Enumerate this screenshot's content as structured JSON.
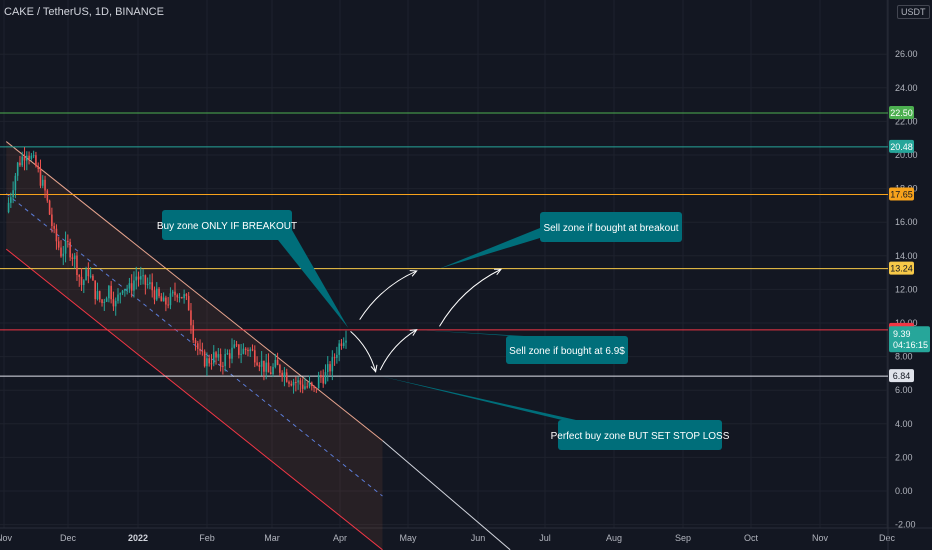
{
  "header": {
    "symbol_title": "CAKE / TetherUS, 1D, BINANCE",
    "currency": "USDT"
  },
  "colors": {
    "background": "#131722",
    "grid": "#1e222d",
    "text": "#b2b5be",
    "candle_up": "#26a69a",
    "candle_down": "#ef5350",
    "callout_bg": "#006e7a",
    "callout_text": "#ffffff"
  },
  "chart_data": {
    "type": "candlestick",
    "y_axis": {
      "ticks": [
        "26.00",
        "24.00",
        "22.00",
        "20.00",
        "18.00",
        "16.00",
        "14.00",
        "12.00",
        "10.00",
        "8.00",
        "6.00",
        "4.00",
        "2.00",
        "0.00",
        "-2.00"
      ],
      "range": [
        -2.0,
        28.5
      ]
    },
    "x_axis": {
      "labels": [
        "Nov",
        "Dec",
        "2022",
        "Feb",
        "Mar",
        "Apr",
        "May",
        "Jun",
        "Jul",
        "Aug",
        "Sep",
        "Oct",
        "Nov",
        "Dec"
      ]
    },
    "price_series": [
      {
        "date": "2021-11-01",
        "price": 16.6
      },
      {
        "date": "2021-11-06",
        "price": 19.4
      },
      {
        "date": "2021-11-10",
        "price": 20.3
      },
      {
        "date": "2021-11-14",
        "price": 19.3
      },
      {
        "date": "2021-11-18",
        "price": 17.8
      },
      {
        "date": "2021-11-22",
        "price": 15.2
      },
      {
        "date": "2021-11-25",
        "price": 14.2
      },
      {
        "date": "2021-11-28",
        "price": 14.6
      },
      {
        "date": "2021-12-01",
        "price": 13.8
      },
      {
        "date": "2021-12-04",
        "price": 12.3
      },
      {
        "date": "2021-12-07",
        "price": 13.1
      },
      {
        "date": "2021-12-10",
        "price": 11.8
      },
      {
        "date": "2021-12-13",
        "price": 11.2
      },
      {
        "date": "2021-12-16",
        "price": 12.1
      },
      {
        "date": "2021-12-19",
        "price": 11.1
      },
      {
        "date": "2021-12-22",
        "price": 12.3
      },
      {
        "date": "2021-12-25",
        "price": 12.0
      },
      {
        "date": "2021-12-28",
        "price": 12.8
      },
      {
        "date": "2021-12-31",
        "price": 12.4
      },
      {
        "date": "2022-01-03",
        "price": 12.2
      },
      {
        "date": "2022-01-06",
        "price": 11.6
      },
      {
        "date": "2022-01-09",
        "price": 11.1
      },
      {
        "date": "2022-01-12",
        "price": 11.4
      },
      {
        "date": "2022-01-15",
        "price": 11.9
      },
      {
        "date": "2022-01-18",
        "price": 11.5
      },
      {
        "date": "2022-01-20",
        "price": 11.0
      },
      {
        "date": "2022-01-22",
        "price": 9.4
      },
      {
        "date": "2022-01-25",
        "price": 8.0
      },
      {
        "date": "2022-01-28",
        "price": 7.7
      },
      {
        "date": "2022-01-31",
        "price": 8.0
      },
      {
        "date": "2022-02-03",
        "price": 7.6
      },
      {
        "date": "2022-02-06",
        "price": 8.1
      },
      {
        "date": "2022-02-09",
        "price": 8.4
      },
      {
        "date": "2022-02-12",
        "price": 8.3
      },
      {
        "date": "2022-02-15",
        "price": 8.5
      },
      {
        "date": "2022-02-18",
        "price": 8.1
      },
      {
        "date": "2022-02-21",
        "price": 7.6
      },
      {
        "date": "2022-02-24",
        "price": 7.0
      },
      {
        "date": "2022-02-27",
        "price": 7.4
      },
      {
        "date": "2022-03-02",
        "price": 7.2
      },
      {
        "date": "2022-03-05",
        "price": 6.7
      },
      {
        "date": "2022-03-08",
        "price": 6.5
      },
      {
        "date": "2022-03-11",
        "price": 6.3
      },
      {
        "date": "2022-03-14",
        "price": 6.2
      },
      {
        "date": "2022-03-16",
        "price": 5.9
      },
      {
        "date": "2022-03-18",
        "price": 6.7
      },
      {
        "date": "2022-03-21",
        "price": 6.9
      },
      {
        "date": "2022-03-24",
        "price": 7.6
      },
      {
        "date": "2022-03-26",
        "price": 8.4
      },
      {
        "date": "2022-03-28",
        "price": 9.0
      },
      {
        "date": "2022-03-30",
        "price": 9.4
      }
    ],
    "horizontal_levels": [
      {
        "label": "22.50",
        "value": 22.5,
        "color": "#4caf50"
      },
      {
        "label": "20.48",
        "value": 20.48,
        "color": "#26a69a"
      },
      {
        "label": "17.65",
        "value": 17.65,
        "color": "#f7a21b"
      },
      {
        "label": "13.24",
        "value": 13.24,
        "color": "#f7c948"
      },
      {
        "label": "9.59",
        "value": 9.59,
        "color": "#f23645"
      },
      {
        "label": "6.84",
        "value": 6.84,
        "color": "#e0e3eb"
      }
    ],
    "current_price": {
      "label": "9.39",
      "countdown": "04:16:15",
      "value": 9.39,
      "color": "#26a69a"
    },
    "channel": {
      "upper": [
        {
          "date": "2021-11-01",
          "price": 20.8
        },
        {
          "date": "2022-04-15",
          "price": 3.0
        }
      ],
      "mid": [
        {
          "date": "2021-11-01",
          "price": 17.7
        },
        {
          "date": "2022-04-15",
          "price": -0.3
        }
      ],
      "lower": [
        {
          "date": "2021-11-01",
          "price": 14.4
        },
        {
          "date": "2022-04-15",
          "price": -3.5
        }
      ],
      "extension": [
        {
          "date": "2022-04-15",
          "price": 3.0
        },
        {
          "date": "2022-06-10",
          "price": -3.5
        }
      ]
    },
    "projection_arrows": [
      {
        "from": {
          "date": "2022-04-05",
          "price": 10.2
        },
        "to": {
          "date": "2022-04-30",
          "price": 13.1
        }
      },
      {
        "from": {
          "date": "2022-04-01",
          "price": 9.5
        },
        "to": {
          "date": "2022-04-12",
          "price": 7.1
        }
      },
      {
        "from": {
          "date": "2022-04-14",
          "price": 7.2
        },
        "to": {
          "date": "2022-04-30",
          "price": 9.6
        }
      },
      {
        "from": {
          "date": "2022-05-10",
          "price": 9.8
        },
        "to": {
          "date": "2022-06-06",
          "price": 13.2
        }
      }
    ],
    "annotations": [
      {
        "id": "buy-breakout",
        "text": "Buy zone ONLY IF BREAKOUT",
        "anchor": "box-left",
        "tip": {
          "date": "2022-03-31",
          "price": 9.7
        }
      },
      {
        "id": "sell-breakout",
        "text": "Sell zone if bought at breakout",
        "anchor": "box-left",
        "tip": {
          "date": "2022-05-10",
          "price": 13.24
        }
      },
      {
        "id": "sell-6-9",
        "text": "Sell zone if bought at 6.9$",
        "anchor": "box-top",
        "tip": {
          "date": "2022-04-30",
          "price": 9.59
        }
      },
      {
        "id": "perfect-buy",
        "text": "Perfect buy zone BUT SET STOP LOSS",
        "anchor": "box-top",
        "tip": {
          "date": "2022-04-14",
          "price": 6.84
        }
      }
    ]
  }
}
